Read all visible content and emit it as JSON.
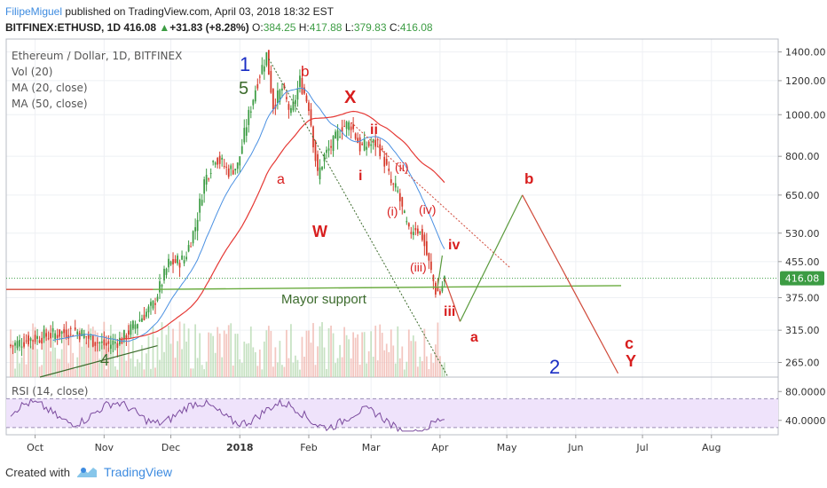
{
  "header": {
    "author": "FilipeMiguel",
    "published": " published on TradingView.com, April 03, 2018 18:32 EST",
    "symbol": "BITFINEX:ETHUSD, 1D",
    "last": "416.08",
    "change_arrow": "▲",
    "change": "+31.83 (+8.28%)",
    "o_label": "O:",
    "o": "384.25",
    "h_label": "H:",
    "h": "417.88",
    "l_label": "L:",
    "l": "379.83",
    "c_label": "C:",
    "c": "416.08"
  },
  "legend": {
    "title": "Ethereum / Dollar, 1D, BITFINEX",
    "vol": "Vol (20)",
    "ma20": "MA (20, close)",
    "ma50": "MA (50, close)",
    "rsi": "RSI (14, close)"
  },
  "annotations": {
    "support": "Mayor support",
    "wave_labels": [
      "1",
      "5",
      "4",
      "2",
      "b",
      "X",
      "ii",
      "a",
      "W",
      "i",
      "(ii)",
      "(i)",
      "(iv)",
      "iv",
      "(iii)",
      "iii",
      "a",
      "b",
      "c",
      "Y"
    ]
  },
  "footer": {
    "created_with": "Created with",
    "brand": "TradingView"
  },
  "colors": {
    "up": "#3c9c43",
    "down": "#d63a2b",
    "ma20": "#4a90e2",
    "ma50": "#e53935",
    "rsi": "#7b4b9e",
    "rsi_band": "#efe3fb",
    "support": "#6aab3f",
    "price_tag": "#3c9c43"
  },
  "chart_data": {
    "type": "candlestick",
    "title": "Ethereum / Dollar, 1D, BITFINEX",
    "scale": "log",
    "ylim": [
      245,
      1500
    ],
    "price_ticks": [
      "1400.00",
      "1200.00",
      "1000.00",
      "800.00",
      "650.00",
      "530.00",
      "455.00",
      "375.00",
      "315.00",
      "265.00"
    ],
    "price_tick_values": [
      1400,
      1200,
      1000,
      800,
      650,
      530,
      455,
      375,
      315,
      265
    ],
    "last_price_label": "416.08",
    "x_labels": [
      "Oct",
      "Nov",
      "Dec",
      "2018",
      "Feb",
      "Mar",
      "Apr",
      "May",
      "Jun",
      "Jul",
      "Aug"
    ],
    "x_label_dates": [
      "2017-10-01",
      "2017-11-01",
      "2017-12-01",
      "2018-01-01",
      "2018-02-01",
      "2018-03-01",
      "2018-04-01",
      "2018-05-01",
      "2018-06-01",
      "2018-07-01",
      "2018-08-01"
    ],
    "series": [
      {
        "name": "ETHUSD close (approx.)",
        "points": [
          [
            "2017-09-20",
            290
          ],
          [
            "2017-09-28",
            300
          ],
          [
            "2017-10-05",
            305
          ],
          [
            "2017-10-12",
            310
          ],
          [
            "2017-10-19",
            315
          ],
          [
            "2017-10-26",
            300
          ],
          [
            "2017-11-02",
            290
          ],
          [
            "2017-11-09",
            300
          ],
          [
            "2017-11-16",
            330
          ],
          [
            "2017-11-23",
            360
          ],
          [
            "2017-11-30",
            450
          ],
          [
            "2017-12-07",
            460
          ],
          [
            "2017-12-12",
            550
          ],
          [
            "2017-12-16",
            700
          ],
          [
            "2017-12-21",
            800
          ],
          [
            "2017-12-27",
            740
          ],
          [
            "2017-12-31",
            760
          ],
          [
            "2018-01-04",
            950
          ],
          [
            "2018-01-08",
            1150
          ],
          [
            "2018-01-10",
            1250
          ],
          [
            "2018-01-13",
            1380
          ],
          [
            "2018-01-16",
            1050
          ],
          [
            "2018-01-20",
            1150
          ],
          [
            "2018-01-24",
            1000
          ],
          [
            "2018-01-28",
            1200
          ],
          [
            "2018-02-01",
            1050
          ],
          [
            "2018-02-05",
            720
          ],
          [
            "2018-02-08",
            800
          ],
          [
            "2018-02-12",
            860
          ],
          [
            "2018-02-16",
            940
          ],
          [
            "2018-02-20",
            950
          ],
          [
            "2018-02-24",
            840
          ],
          [
            "2018-02-28",
            850
          ],
          [
            "2018-03-04",
            860
          ],
          [
            "2018-03-07",
            780
          ],
          [
            "2018-03-10",
            690
          ],
          [
            "2018-03-13",
            660
          ],
          [
            "2018-03-15",
            600
          ],
          [
            "2018-03-18",
            530
          ],
          [
            "2018-03-21",
            550
          ],
          [
            "2018-03-24",
            520
          ],
          [
            "2018-03-27",
            450
          ],
          [
            "2018-03-30",
            390
          ],
          [
            "2018-04-01",
            385
          ],
          [
            "2018-04-03",
            416
          ]
        ]
      }
    ],
    "rsi": {
      "ylim": [
        20,
        100
      ],
      "ticks": [
        "80.0000",
        "40.0000"
      ],
      "tick_values": [
        80,
        40
      ],
      "band": [
        30,
        70
      ]
    }
  }
}
